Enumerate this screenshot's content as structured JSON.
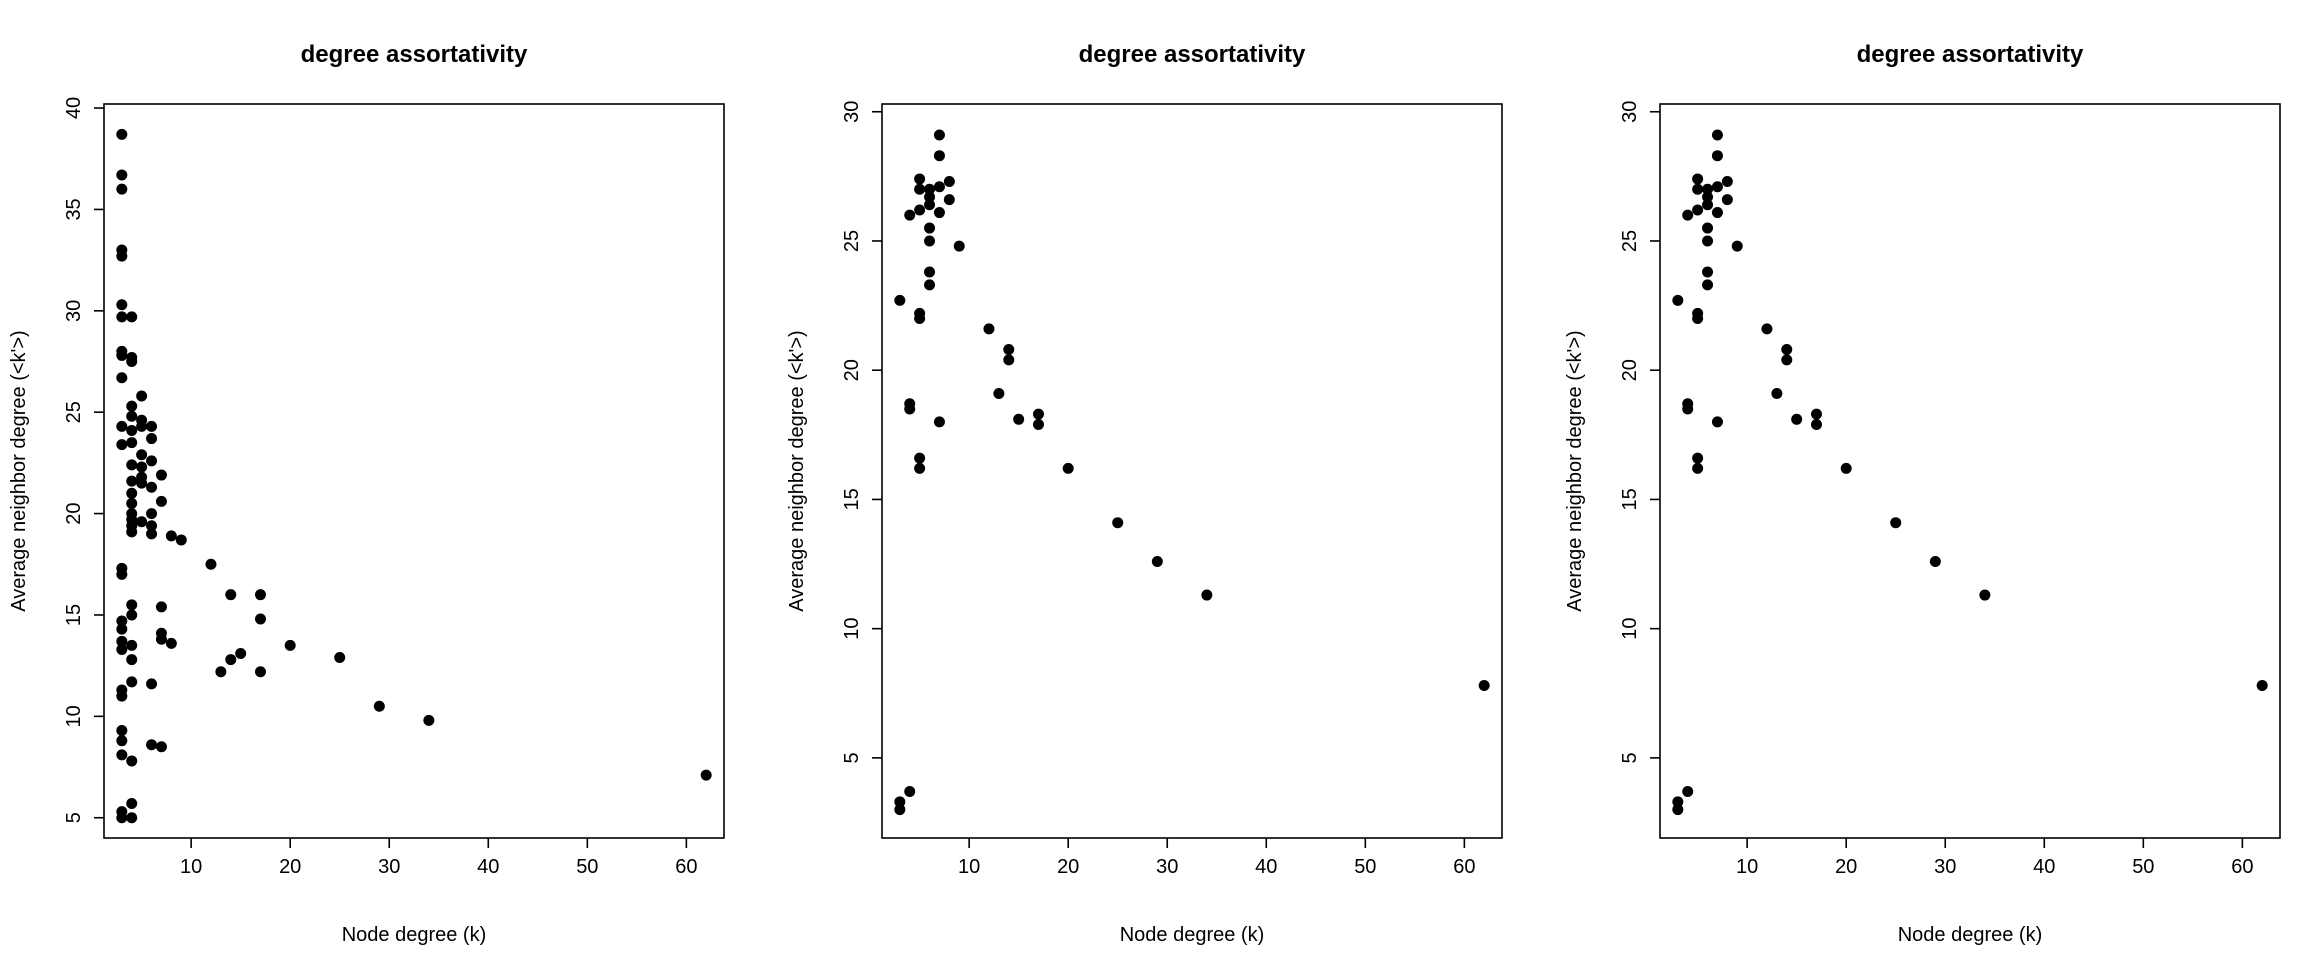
{
  "chart_data": [
    {
      "type": "scatter",
      "title": "degree assortativity",
      "xlabel": "Node degree (k)",
      "ylabel": "Average neighbor degree (<k'>)",
      "xticks": [
        10,
        20,
        30,
        40,
        50,
        60
      ],
      "yticks": [
        5,
        10,
        15,
        20,
        25,
        30,
        35,
        40
      ],
      "xlim": [
        1.2,
        63.8
      ],
      "ylim": [
        4.0,
        40.2
      ],
      "grid": false,
      "points": [
        [
          3,
          38.7
        ],
        [
          3,
          36.7
        ],
        [
          3,
          36.0
        ],
        [
          3,
          33.0
        ],
        [
          3,
          32.7
        ],
        [
          3,
          30.3
        ],
        [
          3,
          29.7
        ],
        [
          4,
          29.7
        ],
        [
          3,
          28.0
        ],
        [
          3,
          27.8
        ],
        [
          4,
          27.7
        ],
        [
          4,
          27.5
        ],
        [
          3,
          26.7
        ],
        [
          5,
          25.8
        ],
        [
          4,
          25.3
        ],
        [
          4,
          24.8
        ],
        [
          5,
          24.6
        ],
        [
          5,
          24.3
        ],
        [
          6,
          24.3
        ],
        [
          3,
          24.3
        ],
        [
          4,
          24.1
        ],
        [
          6,
          23.7
        ],
        [
          3,
          23.4
        ],
        [
          4,
          23.5
        ],
        [
          5,
          22.9
        ],
        [
          6,
          22.6
        ],
        [
          4,
          22.4
        ],
        [
          5,
          22.3
        ],
        [
          7,
          21.9
        ],
        [
          5,
          21.8
        ],
        [
          4,
          21.6
        ],
        [
          5,
          21.5
        ],
        [
          6,
          21.3
        ],
        [
          4,
          21.0
        ],
        [
          7,
          20.6
        ],
        [
          4,
          20.5
        ],
        [
          4,
          20.0
        ],
        [
          6,
          20.0
        ],
        [
          4,
          19.7
        ],
        [
          5,
          19.6
        ],
        [
          4,
          19.4
        ],
        [
          6,
          19.4
        ],
        [
          4,
          19.1
        ],
        [
          6,
          19.0
        ],
        [
          8,
          18.9
        ],
        [
          9,
          18.7
        ],
        [
          12,
          17.5
        ],
        [
          3,
          17.3
        ],
        [
          3,
          17.0
        ],
        [
          14,
          16.0
        ],
        [
          17,
          16.0
        ],
        [
          4,
          15.5
        ],
        [
          7,
          15.4
        ],
        [
          4,
          15.0
        ],
        [
          17,
          14.8
        ],
        [
          3,
          14.7
        ],
        [
          3,
          14.3
        ],
        [
          7,
          14.1
        ],
        [
          7,
          13.8
        ],
        [
          8,
          13.6
        ],
        [
          3,
          13.7
        ],
        [
          4,
          13.5
        ],
        [
          3,
          13.3
        ],
        [
          20,
          13.5
        ],
        [
          15,
          13.1
        ],
        [
          25,
          12.9
        ],
        [
          14,
          12.8
        ],
        [
          4,
          12.8
        ],
        [
          13,
          12.2
        ],
        [
          17,
          12.2
        ],
        [
          4,
          11.7
        ],
        [
          6,
          11.6
        ],
        [
          3,
          11.3
        ],
        [
          3,
          11.0
        ],
        [
          29,
          10.5
        ],
        [
          34,
          9.8
        ],
        [
          3,
          9.3
        ],
        [
          3,
          8.8
        ],
        [
          6,
          8.6
        ],
        [
          7,
          8.5
        ],
        [
          3,
          8.1
        ],
        [
          4,
          7.8
        ],
        [
          62,
          7.1
        ],
        [
          4,
          5.7
        ],
        [
          3,
          5.3
        ],
        [
          3,
          5.0
        ],
        [
          4,
          5.0
        ]
      ]
    },
    {
      "type": "scatter",
      "title": "degree assortativity",
      "xlabel": "Node degree (k)",
      "ylabel": "Average neighbor degree (<k'>)",
      "xticks": [
        10,
        20,
        30,
        40,
        50,
        60
      ],
      "yticks": [
        5,
        10,
        15,
        20,
        25,
        30
      ],
      "xlim": [
        1.2,
        63.8
      ],
      "ylim": [
        1.9,
        30.3
      ],
      "grid": false,
      "points": [
        [
          7,
          29.1
        ],
        [
          7,
          28.3
        ],
        [
          5,
          27.4
        ],
        [
          8,
          27.3
        ],
        [
          5,
          27.0
        ],
        [
          6,
          27.0
        ],
        [
          7,
          27.1
        ],
        [
          6,
          26.7
        ],
        [
          8,
          26.6
        ],
        [
          5,
          26.2
        ],
        [
          6,
          26.4
        ],
        [
          7,
          26.1
        ],
        [
          4,
          26.0
        ],
        [
          6,
          25.5
        ],
        [
          6,
          25.0
        ],
        [
          9,
          24.8
        ],
        [
          6,
          23.8
        ],
        [
          6,
          23.3
        ],
        [
          3,
          22.7
        ],
        [
          5,
          22.2
        ],
        [
          5,
          22.0
        ],
        [
          12,
          21.6
        ],
        [
          14,
          20.8
        ],
        [
          14,
          20.4
        ],
        [
          13,
          19.1
        ],
        [
          4,
          18.7
        ],
        [
          4,
          18.5
        ],
        [
          17,
          18.3
        ],
        [
          15,
          18.1
        ],
        [
          7,
          18.0
        ],
        [
          17,
          17.9
        ],
        [
          5,
          16.6
        ],
        [
          5,
          16.2
        ],
        [
          20,
          16.2
        ],
        [
          25,
          14.1
        ],
        [
          29,
          12.6
        ],
        [
          34,
          11.3
        ],
        [
          62,
          7.8
        ],
        [
          4,
          3.7
        ],
        [
          3,
          3.3
        ],
        [
          3,
          3.0
        ]
      ]
    },
    {
      "type": "scatter",
      "title": "degree assortativity",
      "xlabel": "Node degree (k)",
      "ylabel": "Average neighbor degree (<k'>)",
      "xticks": [
        10,
        20,
        30,
        40,
        50,
        60
      ],
      "yticks": [
        5,
        10,
        15,
        20,
        25,
        30
      ],
      "xlim": [
        1.2,
        63.8
      ],
      "ylim": [
        1.9,
        30.3
      ],
      "grid": false,
      "points": [
        [
          7,
          29.1
        ],
        [
          7,
          28.3
        ],
        [
          5,
          27.4
        ],
        [
          8,
          27.3
        ],
        [
          5,
          27.0
        ],
        [
          6,
          27.0
        ],
        [
          7,
          27.1
        ],
        [
          6,
          26.7
        ],
        [
          8,
          26.6
        ],
        [
          5,
          26.2
        ],
        [
          6,
          26.4
        ],
        [
          7,
          26.1
        ],
        [
          4,
          26.0
        ],
        [
          6,
          25.5
        ],
        [
          6,
          25.0
        ],
        [
          9,
          24.8
        ],
        [
          6,
          23.8
        ],
        [
          6,
          23.3
        ],
        [
          3,
          22.7
        ],
        [
          5,
          22.2
        ],
        [
          5,
          22.0
        ],
        [
          12,
          21.6
        ],
        [
          14,
          20.8
        ],
        [
          14,
          20.4
        ],
        [
          13,
          19.1
        ],
        [
          4,
          18.7
        ],
        [
          4,
          18.5
        ],
        [
          17,
          18.3
        ],
        [
          15,
          18.1
        ],
        [
          7,
          18.0
        ],
        [
          17,
          17.9
        ],
        [
          5,
          16.6
        ],
        [
          5,
          16.2
        ],
        [
          20,
          16.2
        ],
        [
          25,
          14.1
        ],
        [
          29,
          12.6
        ],
        [
          34,
          11.3
        ],
        [
          62,
          7.8
        ],
        [
          4,
          3.7
        ],
        [
          3,
          3.3
        ],
        [
          3,
          3.0
        ]
      ]
    }
  ]
}
